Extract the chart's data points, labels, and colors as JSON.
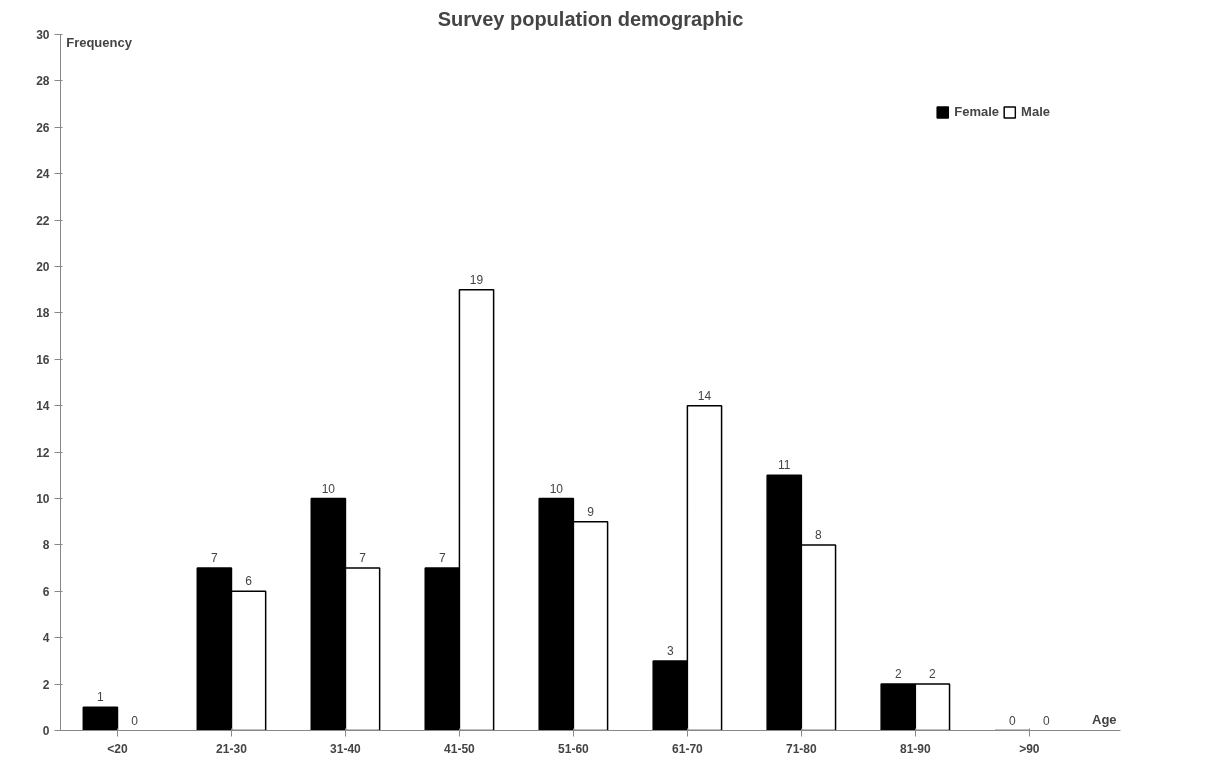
{
  "chart_data": {
    "type": "bar",
    "title": "Survey population demographic",
    "xlabel": "Age",
    "ylabel": "Frequency",
    "categories": [
      "<20",
      "21-30",
      "31-40",
      "41-50",
      "51-60",
      "61-70",
      "71-80",
      "81-90",
      ">90"
    ],
    "series": [
      {
        "name": "Female",
        "color": "#000000",
        "values": [
          1,
          7,
          10,
          7,
          10,
          3,
          11,
          2,
          0
        ]
      },
      {
        "name": "Male",
        "color": "#ffffff",
        "values": [
          0,
          6,
          7,
          19,
          9,
          14,
          8,
          2,
          0
        ]
      }
    ],
    "ylim": [
      0,
      30
    ],
    "yticks": [
      0,
      2,
      4,
      6,
      8,
      10,
      12,
      14,
      16,
      18,
      20,
      22,
      24,
      26,
      28,
      30
    ],
    "data_labels": true,
    "legend": "top right",
    "grid": false
  }
}
